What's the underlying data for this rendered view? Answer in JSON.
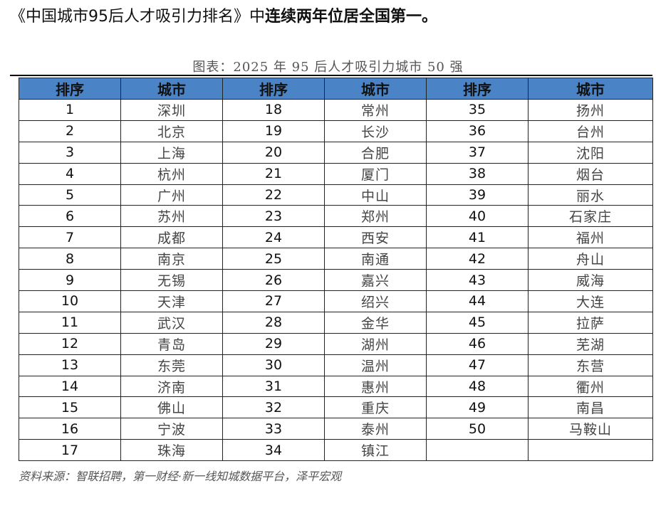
{
  "headline": {
    "prefix": "《中国城市95后人才吸引力排名》中",
    "emphasis": "连续两年位居全国第一。"
  },
  "caption": "图表：2025 年 95 后人才吸引力城市 50 强",
  "table": {
    "headers": [
      "排序",
      "城市",
      "排序",
      "城市",
      "排序",
      "城市"
    ],
    "rows": [
      [
        "1",
        "深圳",
        "18",
        "常州",
        "35",
        "扬州"
      ],
      [
        "2",
        "北京",
        "19",
        "长沙",
        "36",
        "台州"
      ],
      [
        "3",
        "上海",
        "20",
        "合肥",
        "37",
        "沈阳"
      ],
      [
        "4",
        "杭州",
        "21",
        "厦门",
        "38",
        "烟台"
      ],
      [
        "5",
        "广州",
        "22",
        "中山",
        "39",
        "丽水"
      ],
      [
        "6",
        "苏州",
        "23",
        "郑州",
        "40",
        "石家庄"
      ],
      [
        "7",
        "成都",
        "24",
        "西安",
        "41",
        "福州"
      ],
      [
        "8",
        "南京",
        "25",
        "南通",
        "42",
        "舟山"
      ],
      [
        "9",
        "无锡",
        "26",
        "嘉兴",
        "43",
        "威海"
      ],
      [
        "10",
        "天津",
        "27",
        "绍兴",
        "44",
        "大连"
      ],
      [
        "11",
        "武汉",
        "28",
        "金华",
        "45",
        "拉萨"
      ],
      [
        "12",
        "青岛",
        "29",
        "湖州",
        "46",
        "芜湖"
      ],
      [
        "13",
        "东莞",
        "30",
        "温州",
        "47",
        "东营"
      ],
      [
        "14",
        "济南",
        "31",
        "惠州",
        "48",
        "衢州"
      ],
      [
        "15",
        "佛山",
        "32",
        "重庆",
        "49",
        "南昌"
      ],
      [
        "16",
        "宁波",
        "33",
        "泰州",
        "50",
        "马鞍山"
      ],
      [
        "17",
        "珠海",
        "34",
        "镇江",
        "",
        ""
      ]
    ]
  },
  "source": "资料来源：智联招聘，第一财经·新一线知城数据平台，泽平宏观",
  "colors": {
    "header_bg": "#4b84c6"
  }
}
